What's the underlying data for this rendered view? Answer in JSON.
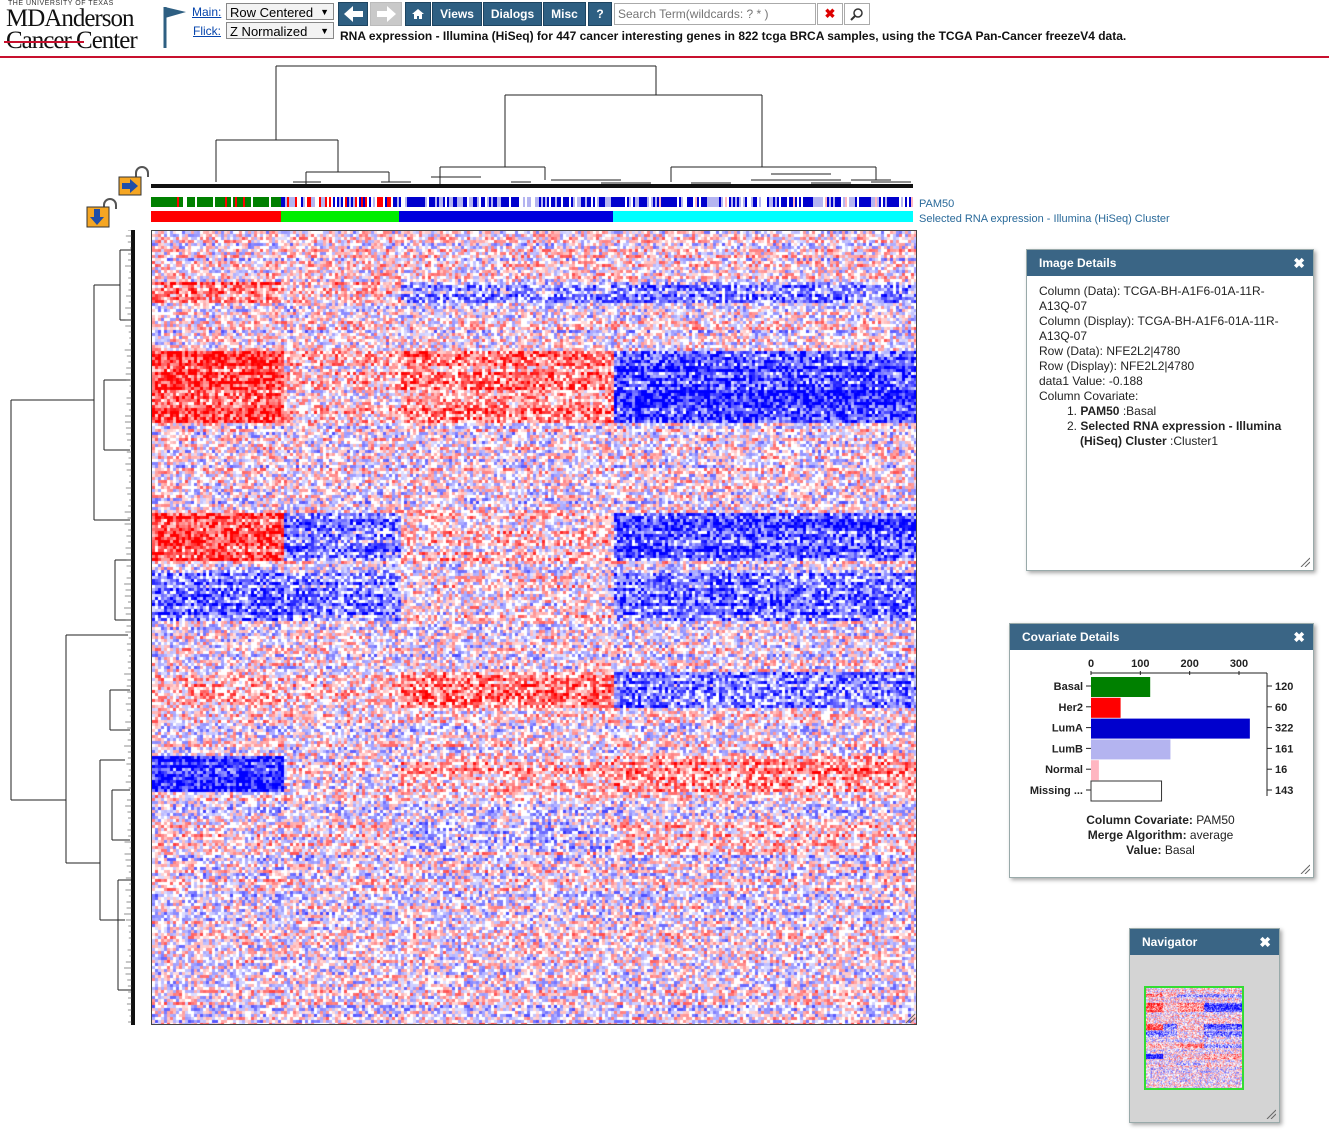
{
  "header": {
    "logo": {
      "ut": "THE UNIVERSITY OF TEXAS",
      "line1": "MDAnderson",
      "line2": "Cancer Center"
    },
    "main_label": "Main:",
    "flick_label": "Flick:",
    "main_select": "Row Centered",
    "flick_select": "Z Normalized",
    "buttons": {
      "views": "Views",
      "dialogs": "Dialogs",
      "misc": "Misc",
      "help": "?"
    },
    "search_placeholder": "Search Term(wildcards: ? * )",
    "title": "RNA expression - Illumina (HiSeq) for 447 cancer interesting genes in 822 tcga BRCA samples, using the TCGA Pan-Cancer freezeV4 data."
  },
  "covariate_bars": {
    "pam50_label": "PAM50",
    "cluster_label": "Selected RNA expression - Illumina (HiSeq) Cluster"
  },
  "colors": {
    "red": "#ff0000",
    "blue": "#0000ff",
    "green": "#008000",
    "lime": "#00ff00",
    "cyan": "#00ffff",
    "lumB": "#b4b4f0",
    "normal": "#ffb6c1",
    "header_bg": "#3a6585",
    "brand_red": "#c8102e"
  },
  "image_details": {
    "title": "Image Details",
    "lines": [
      "Column (Data): TCGA-BH-A1F6-01A-11R-",
      "A13Q-07",
      "Column (Display): TCGA-BH-A1F6-01A-11R-",
      "A13Q-07",
      "Row (Data): NFE2L2|4780",
      "Row (Display): NFE2L2|4780",
      "data1 Value: -0.188",
      "Column Covariate:"
    ],
    "covariates": [
      {
        "num": "1.",
        "name": "PAM50",
        "value": " :Basal"
      },
      {
        "num": "2.",
        "name": "Selected RNA expression - Illumina",
        "name2": "(HiSeq) Cluster",
        "value": " :Cluster1"
      }
    ]
  },
  "covariate_details": {
    "title": "Covariate Details",
    "axis_ticks": [
      "0",
      "100",
      "200",
      "300"
    ],
    "axis_max": 330,
    "bars": [
      {
        "label": "Basal",
        "value": 120,
        "count": "120",
        "color": "#008000"
      },
      {
        "label": "Her2",
        "value": 60,
        "count": "60",
        "color": "#ff0000"
      },
      {
        "label": "LumA",
        "value": 322,
        "count": "322",
        "color": "#0000cd"
      },
      {
        "label": "LumB",
        "value": 161,
        "count": "161",
        "color": "#b4b4f0"
      },
      {
        "label": "Normal",
        "value": 16,
        "count": "16",
        "color": "#ffb6c1"
      },
      {
        "label": "Missing ...",
        "value": 143,
        "count": "143",
        "color": "#ffffff"
      }
    ],
    "column_covariate_label": "Column Covariate:",
    "column_covariate_value": " PAM50",
    "merge_label": "Merge Algorithm:",
    "merge_value": " average",
    "value_label": "Value:",
    "value_value": " Basal"
  },
  "navigator": {
    "title": "Navigator"
  }
}
